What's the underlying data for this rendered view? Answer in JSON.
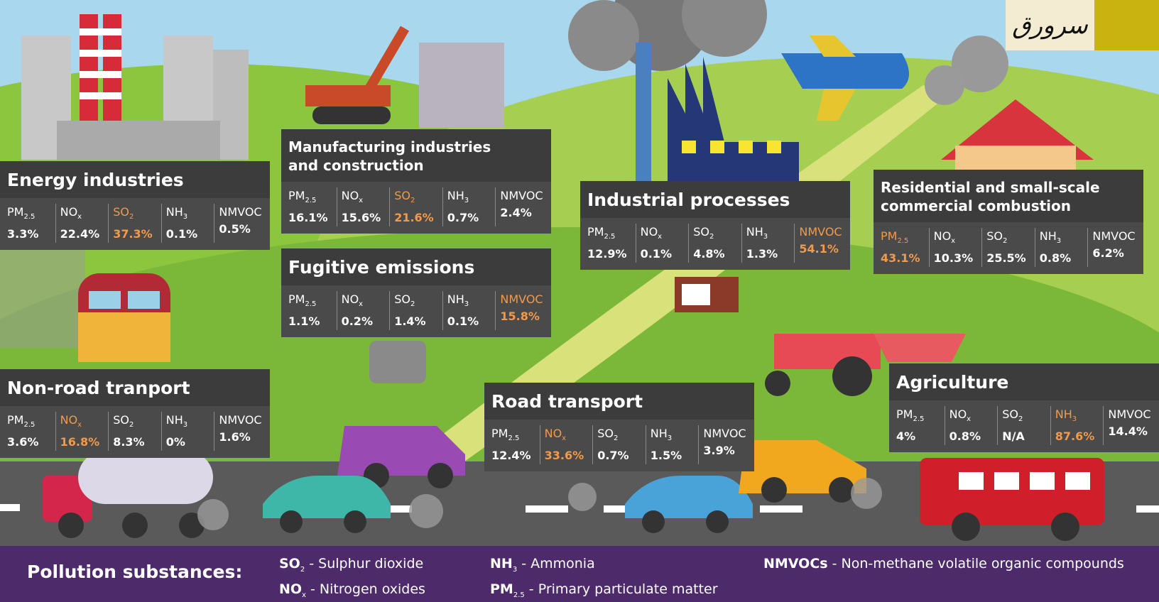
{
  "logo": "سرورق",
  "highlight_color": "#f39a4a",
  "sectors": [
    {
      "title": [
        "Energy industries"
      ],
      "highlight": 2,
      "cells": [
        {
          "name": "PM",
          "sub": "2.5",
          "value": "3.3%"
        },
        {
          "name": "NO",
          "sub": "x",
          "value": "22.4%"
        },
        {
          "name": "SO",
          "sub": "2",
          "value": "37.3%"
        },
        {
          "name": "NH",
          "sub": "3",
          "value": "0.1%"
        },
        {
          "name": "NMVOC",
          "value": "0.5%"
        }
      ]
    },
    {
      "title": [
        "Manufacturing industries",
        "and construction"
      ],
      "highlight": 2,
      "cells": [
        {
          "name": "PM",
          "sub": "2.5",
          "value": "16.1%"
        },
        {
          "name": "NO",
          "sub": "x",
          "value": "15.6%"
        },
        {
          "name": "SO",
          "sub": "2",
          "value": "21.6%"
        },
        {
          "name": "NH",
          "sub": "3",
          "value": "0.7%"
        },
        {
          "name": "NMVOC",
          "value": "2.4%"
        }
      ]
    },
    {
      "title": [
        "Fugitive emissions"
      ],
      "highlight": 4,
      "cells": [
        {
          "name": "PM",
          "sub": "2.5",
          "value": "1.1%"
        },
        {
          "name": "NO",
          "sub": "x",
          "value": "0.2%"
        },
        {
          "name": "SO",
          "sub": "2",
          "value": "1.4%"
        },
        {
          "name": "NH",
          "sub": "3",
          "value": "0.1%"
        },
        {
          "name": "NMVOC",
          "value": "15.8%"
        }
      ]
    },
    {
      "title": [
        "Industrial processes"
      ],
      "highlight": 4,
      "cells": [
        {
          "name": "PM",
          "sub": "2.5",
          "value": "12.9%"
        },
        {
          "name": "NO",
          "sub": "x",
          "value": "0.1%"
        },
        {
          "name": "SO",
          "sub": "2",
          "value": "4.8%"
        },
        {
          "name": "NH",
          "sub": "3",
          "value": "1.3%"
        },
        {
          "name": "NMVOC",
          "value": "54.1%"
        }
      ]
    },
    {
      "title": [
        "Residential and small-scale",
        "commercial combustion"
      ],
      "highlight": 0,
      "cells": [
        {
          "name": "PM",
          "sub": "2.5",
          "value": "43.1%"
        },
        {
          "name": "NO",
          "sub": "x",
          "value": "10.3%"
        },
        {
          "name": "SO",
          "sub": "2",
          "value": "25.5%"
        },
        {
          "name": "NH",
          "sub": "3",
          "value": "0.8%"
        },
        {
          "name": "NMVOC",
          "value": "6.2%"
        }
      ]
    },
    {
      "title": [
        "Non-road tranport"
      ],
      "highlight": 1,
      "cells": [
        {
          "name": "PM",
          "sub": "2.5",
          "value": "3.6%"
        },
        {
          "name": "NO",
          "sub": "x",
          "value": "16.8%"
        },
        {
          "name": "SO",
          "sub": "2",
          "value": "8.3%"
        },
        {
          "name": "NH",
          "sub": "3",
          "value": "0%"
        },
        {
          "name": "NMVOC",
          "value": "1.6%"
        }
      ]
    },
    {
      "title": [
        "Road transport"
      ],
      "highlight": 1,
      "cells": [
        {
          "name": "PM",
          "sub": "2.5",
          "value": "12.4%"
        },
        {
          "name": "NO",
          "sub": "x",
          "value": "33.6%"
        },
        {
          "name": "SO",
          "sub": "2",
          "value": "0.7%"
        },
        {
          "name": "NH",
          "sub": "3",
          "value": "1.5%"
        },
        {
          "name": "NMVOC",
          "value": "3.9%"
        }
      ]
    },
    {
      "title": [
        "Agriculture"
      ],
      "highlight": 3,
      "cells": [
        {
          "name": "PM",
          "sub": "2.5",
          "value": "4%"
        },
        {
          "name": "NO",
          "sub": "x",
          "value": "0.8%"
        },
        {
          "name": "SO",
          "sub": "2",
          "value": "N/A"
        },
        {
          "name": "NH",
          "sub": "3",
          "value": "87.6%"
        },
        {
          "name": "NMVOC",
          "value": "14.4%"
        }
      ]
    }
  ],
  "legend": {
    "title": "Pollution substances:",
    "items": [
      {
        "symbol": "SO",
        "sub": "2",
        "text": "- Sulphur dioxide"
      },
      {
        "symbol": "NO",
        "sub": "x",
        "text": "- Nitrogen oxides"
      },
      {
        "symbol": "NH",
        "sub": "3",
        "text": "- Ammonia"
      },
      {
        "symbol": "PM",
        "sub": "2.5",
        "text": "- Primary particulate matter"
      },
      {
        "symbol": "NMVOCs",
        "text": "- Non-methane volatile organic compounds"
      }
    ]
  }
}
